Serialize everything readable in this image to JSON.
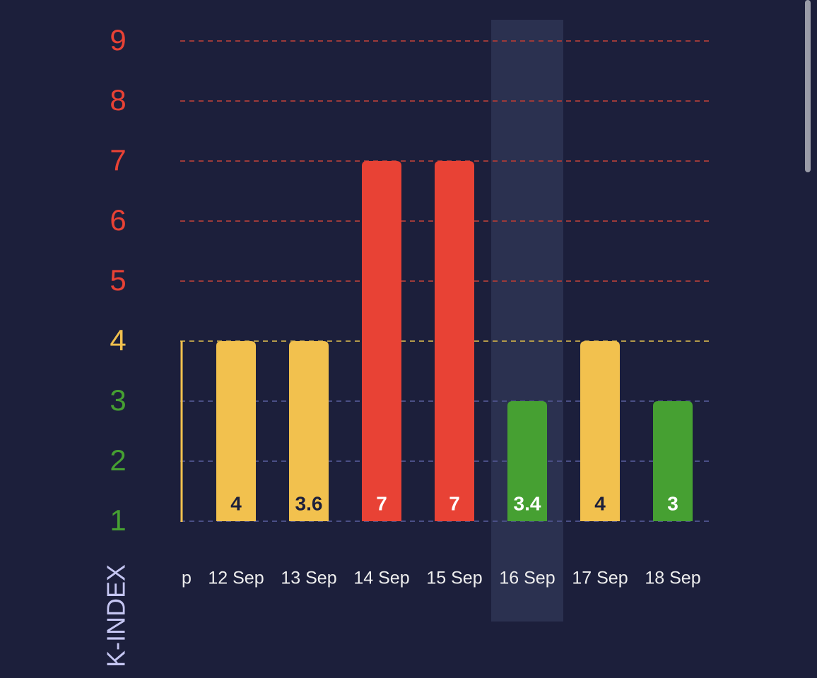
{
  "chart_data": {
    "type": "bar",
    "y_axis_label": "K-INDEX",
    "categories": [
      "p",
      "12 Sep",
      "13 Sep",
      "14 Sep",
      "15 Sep",
      "16 Sep",
      "17 Sep",
      "18 Sep"
    ],
    "values": [
      null,
      4,
      4,
      7,
      7,
      3,
      4,
      3
    ],
    "kp_values": [
      null,
      4,
      3.6,
      7,
      7,
      3.4,
      4,
      3
    ],
    "colors": [
      null,
      "#f2c14e",
      "#f2c14e",
      "#e84235",
      "#e84235",
      "#46a032",
      "#f2c14e",
      "#46a032"
    ],
    "label_colors": [
      null,
      "#1c1f3b",
      "#1c1f3b",
      "#ffffff",
      "#ffffff",
      "#ffffff",
      "#1c1f3b",
      "#ffffff"
    ],
    "ylim": [
      1,
      9
    ],
    "yticks": [
      1,
      2,
      3,
      4,
      5,
      6,
      7,
      8,
      9
    ],
    "ytick_colors": [
      "#46a032",
      "#46a032",
      "#46a032",
      "#f2c14e",
      "#e84235",
      "#e84235",
      "#e84235",
      "#e84235",
      "#e84235"
    ],
    "grid_colors": [
      "#4a4f86",
      "#4a4f86",
      "#4a4f86",
      "#b39a4a",
      "#9c3a3a",
      "#9c3a3a",
      "#9c3a3a",
      "#9c3a3a",
      "#9c3a3a"
    ],
    "grid": true,
    "highlight_index": 5
  }
}
